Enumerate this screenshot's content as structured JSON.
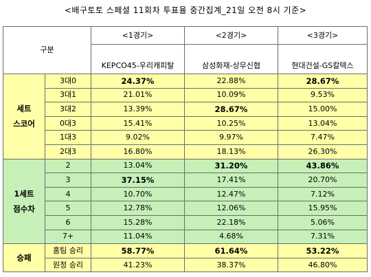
{
  "title": "<배구토토 스페셜 11회차 투표율 중간집계_21일 오전 8시 기준>",
  "header": {
    "category": "구분",
    "games": [
      {
        "num": "<1경기>",
        "teams": "KEPCO45-우리캐피탈"
      },
      {
        "num": "<2경기>",
        "teams": "삼성화재-상무신협"
      },
      {
        "num": "<3경기>",
        "teams": "현대건설-GS칼텍스"
      }
    ]
  },
  "sections": [
    {
      "group": "세트\n스코어",
      "color": "#ffffa8",
      "rows": [
        {
          "label": "3대0",
          "values": [
            "24.37%",
            "22.88%",
            "28.67%"
          ],
          "bold": [
            true,
            false,
            true
          ]
        },
        {
          "label": "3대1",
          "values": [
            "21.01%",
            "10.09%",
            "9.53%"
          ],
          "bold": [
            false,
            false,
            false
          ]
        },
        {
          "label": "3대2",
          "values": [
            "13.39%",
            "28.67%",
            "15.00%"
          ],
          "bold": [
            false,
            true,
            false
          ]
        },
        {
          "label": "0대3",
          "values": [
            "15.41%",
            "10.25%",
            "13.04%"
          ],
          "bold": [
            false,
            false,
            false
          ]
        },
        {
          "label": "1대3",
          "values": [
            "9.02%",
            "9.97%",
            "7.47%"
          ],
          "bold": [
            false,
            false,
            false
          ]
        },
        {
          "label": "2대3",
          "values": [
            "16.80%",
            "18.13%",
            "26.30%"
          ],
          "bold": [
            false,
            false,
            false
          ]
        }
      ]
    },
    {
      "group": "1세트\n점수차",
      "color": "#c6f0b8",
      "rows": [
        {
          "label": "2",
          "values": [
            "13.04%",
            "31.20%",
            "43.86%"
          ],
          "bold": [
            false,
            true,
            true
          ]
        },
        {
          "label": "3",
          "values": [
            "37.15%",
            "17.41%",
            "20.70%"
          ],
          "bold": [
            true,
            false,
            false
          ]
        },
        {
          "label": "4",
          "values": [
            "10.70%",
            "12.47%",
            "7.12%"
          ],
          "bold": [
            false,
            false,
            false
          ]
        },
        {
          "label": "5",
          "values": [
            "12.78%",
            "12.06%",
            "15.95%"
          ],
          "bold": [
            false,
            false,
            false
          ]
        },
        {
          "label": "6",
          "values": [
            "15.28%",
            "22.18%",
            "5.06%"
          ],
          "bold": [
            false,
            false,
            false
          ]
        },
        {
          "label": "7+",
          "values": [
            "11.04%",
            "4.68%",
            "7.31%"
          ],
          "bold": [
            false,
            false,
            false
          ]
        }
      ]
    },
    {
      "group": "승패",
      "color": "#ffffa8",
      "rows": [
        {
          "label": "홈팀 승리",
          "values": [
            "58.77%",
            "61.64%",
            "53.22%"
          ],
          "bold": [
            true,
            true,
            true
          ]
        },
        {
          "label": "원정 승리",
          "values": [
            "41.23%",
            "38.37%",
            "46.80%"
          ],
          "bold": [
            false,
            false,
            false
          ]
        }
      ]
    }
  ]
}
